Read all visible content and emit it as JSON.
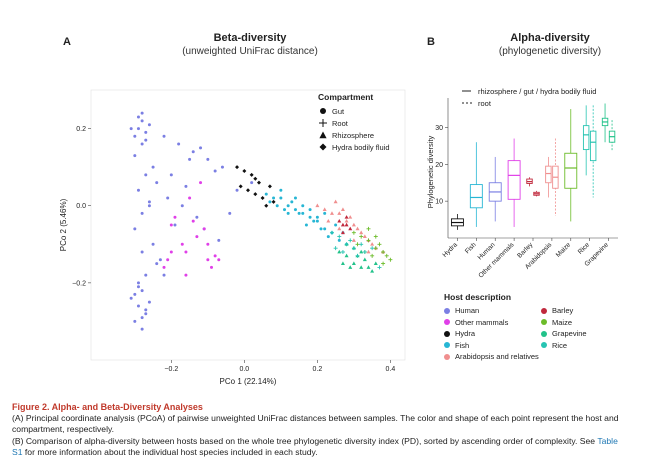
{
  "panel_a": {
    "letter": "A",
    "title": "Beta-diversity",
    "subtitle": "(unweighted UniFrac distance)",
    "legend_title": "Compartment",
    "legend_items": [
      "Gut",
      "Root",
      "Rhizosphere",
      "Hydra bodily fluid"
    ]
  },
  "panel_b": {
    "letter": "B",
    "title": "Alpha-diversity",
    "subtitle": "(phylogenetic diversity)",
    "line_legend": [
      "rhizosphere / gut / hydra bodily fluid",
      "root"
    ]
  },
  "host_legend": {
    "title": "Host description",
    "items": [
      {
        "label": "Human",
        "color": "#7b7fe3"
      },
      {
        "label": "Other mammals",
        "color": "#e040e8"
      },
      {
        "label": "Hydra",
        "color": "#111111"
      },
      {
        "label": "Fish",
        "color": "#27b6d4"
      },
      {
        "label": "Arabidopsis and relatives",
        "color": "#f08f8f"
      },
      {
        "label": "Barley",
        "color": "#c0283c"
      },
      {
        "label": "Maize",
        "color": "#6cbc2a"
      },
      {
        "label": "Grapevine",
        "color": "#22c28a"
      },
      {
        "label": "Rice",
        "color": "#27c4b2"
      }
    ]
  },
  "chart_data": [
    {
      "type": "scatter",
      "xlabel": "PCo 1 (22.14%)",
      "ylabel": "PCo 2 (5.46%)",
      "xlim": [
        -0.42,
        0.44
      ],
      "ylim": [
        -0.4,
        0.3
      ],
      "xticks": [
        -0.2,
        0.0,
        0.2,
        0.4
      ],
      "xtick_labels": [
        "−0.2",
        "0.0",
        "0.2",
        "0.4"
      ],
      "yticks": [
        -0.2,
        0.0,
        0.2
      ],
      "ytick_labels": [
        "−0.2",
        "0.0",
        "0.2"
      ],
      "series": [
        {
          "name": "Human",
          "shape": "Gut",
          "color": "#7b7fe3",
          "x": [
            -0.28,
            -0.29,
            -0.27,
            -0.3,
            -0.28,
            -0.26,
            -0.29,
            -0.31,
            -0.27,
            -0.28,
            -0.3,
            -0.27,
            -0.29,
            -0.28,
            -0.26,
            -0.3,
            -0.28,
            -0.27,
            -0.29,
            -0.28,
            -0.31,
            -0.29,
            -0.27,
            -0.28,
            -0.3,
            -0.26,
            -0.28,
            -0.29,
            -0.27,
            -0.3,
            -0.22,
            -0.18,
            -0.14,
            -0.1,
            -0.06,
            -0.2,
            -0.15,
            -0.12,
            -0.08,
            -0.24,
            -0.21,
            -0.17,
            -0.13,
            -0.11,
            -0.07,
            -0.04,
            -0.02,
            0.02,
            -0.25,
            -0.23,
            -0.19,
            -0.16,
            -0.25,
            -0.22,
            -0.26,
            -0.24
          ],
          "y": [
            0.22,
            0.2,
            0.19,
            0.18,
            0.16,
            0.21,
            0.23,
            0.2,
            0.17,
            0.24,
            0.13,
            0.08,
            0.04,
            -0.02,
            0.01,
            -0.06,
            -0.12,
            -0.18,
            -0.2,
            -0.22,
            -0.24,
            -0.26,
            -0.27,
            -0.29,
            -0.3,
            -0.25,
            -0.32,
            -0.21,
            -0.28,
            -0.23,
            0.18,
            0.16,
            0.14,
            0.12,
            0.1,
            0.08,
            0.12,
            0.15,
            0.09,
            0.06,
            0.02,
            0.0,
            -0.03,
            -0.06,
            -0.09,
            -0.02,
            0.04,
            0.06,
            -0.1,
            -0.14,
            -0.05,
            0.05,
            0.1,
            -0.18,
            0.0,
            -0.15
          ]
        },
        {
          "name": "Other mammals",
          "shape": "Gut",
          "color": "#e040e8",
          "x": [
            -0.21,
            -0.2,
            -0.16,
            -0.1,
            -0.08,
            -0.13,
            -0.19,
            -0.15,
            -0.12,
            -0.09,
            -0.22,
            -0.17,
            -0.11,
            -0.14,
            -0.2,
            -0.16,
            -0.07,
            -0.1
          ],
          "y": [
            -0.14,
            -0.12,
            -0.12,
            -0.14,
            -0.13,
            -0.08,
            -0.03,
            0.02,
            0.06,
            -0.16,
            -0.16,
            -0.1,
            -0.06,
            -0.04,
            -0.05,
            -0.18,
            -0.14,
            -0.1
          ]
        },
        {
          "name": "Hydra",
          "shape": "Hydra bodily fluid",
          "color": "#111111",
          "x": [
            -0.02,
            0.0,
            0.02,
            0.04,
            -0.01,
            0.01,
            0.03,
            0.05,
            0.06,
            0.08,
            0.03,
            0.07
          ],
          "y": [
            0.1,
            0.09,
            0.08,
            0.06,
            0.05,
            0.04,
            0.03,
            0.02,
            0.0,
            0.01,
            0.07,
            0.05
          ]
        },
        {
          "name": "Fish",
          "shape": "Gut",
          "color": "#27b6d4",
          "x": [
            0.06,
            0.08,
            0.1,
            0.12,
            0.14,
            0.16,
            0.18,
            0.2,
            0.22,
            0.24,
            0.26,
            0.28,
            0.09,
            0.11,
            0.13,
            0.15,
            0.17,
            0.19,
            0.21,
            0.23,
            0.25,
            0.27,
            0.07,
            0.1,
            0.12,
            0.14,
            0.16,
            0.18,
            0.2,
            0.22
          ],
          "y": [
            0.03,
            0.02,
            0.02,
            0.0,
            -0.01,
            -0.02,
            -0.03,
            -0.04,
            -0.06,
            -0.07,
            -0.09,
            -0.1,
            0.0,
            -0.01,
            0.01,
            -0.02,
            -0.05,
            -0.04,
            -0.06,
            -0.08,
            -0.05,
            -0.07,
            0.01,
            0.04,
            -0.02,
            0.02,
            0.0,
            -0.01,
            -0.03,
            -0.02
          ]
        },
        {
          "name": "Arabidopsis and relatives",
          "shape": "Rhizosphere",
          "color": "#f08f8f",
          "x": [
            0.2,
            0.22,
            0.24,
            0.26,
            0.28,
            0.3,
            0.32,
            0.34,
            0.36,
            0.38,
            0.25,
            0.27,
            0.29,
            0.31,
            0.33,
            0.35,
            0.23,
            0.26,
            0.3,
            0.34
          ],
          "y": [
            0.0,
            -0.01,
            -0.02,
            -0.02,
            -0.04,
            -0.05,
            -0.07,
            -0.09,
            -0.11,
            -0.12,
            0.01,
            -0.01,
            -0.03,
            -0.06,
            -0.08,
            -0.1,
            -0.04,
            -0.06,
            -0.09,
            -0.12
          ]
        },
        {
          "name": "Barley",
          "shape": "Rhizosphere",
          "color": "#c0283c",
          "x": [
            0.26,
            0.27,
            0.28,
            0.29,
            0.27,
            0.28
          ],
          "y": [
            -0.04,
            -0.05,
            -0.05,
            -0.06,
            -0.07,
            -0.03
          ]
        },
        {
          "name": "Maize",
          "shape": "Root",
          "color": "#6cbc2a",
          "x": [
            0.3,
            0.32,
            0.34,
            0.36,
            0.38,
            0.4,
            0.33,
            0.35,
            0.37,
            0.39,
            0.31,
            0.36,
            0.38,
            0.34
          ],
          "y": [
            -0.07,
            -0.08,
            -0.09,
            -0.11,
            -0.12,
            -0.14,
            -0.12,
            -0.13,
            -0.1,
            -0.13,
            -0.1,
            -0.08,
            -0.15,
            -0.06
          ]
        },
        {
          "name": "Grapevine",
          "shape": "Rhizosphere",
          "color": "#22c28a",
          "x": [
            0.26,
            0.28,
            0.3,
            0.32,
            0.34,
            0.36,
            0.27,
            0.29,
            0.31,
            0.33,
            0.35,
            0.3,
            0.32,
            0.28
          ],
          "y": [
            -0.12,
            -0.13,
            -0.15,
            -0.16,
            -0.16,
            -0.15,
            -0.15,
            -0.16,
            -0.13,
            -0.14,
            -0.17,
            -0.11,
            -0.12,
            -0.1
          ]
        },
        {
          "name": "Rice",
          "shape": "Root",
          "color": "#27c4b2",
          "x": [
            0.24,
            0.26,
            0.28,
            0.3,
            0.32,
            0.25,
            0.27,
            0.29,
            0.31,
            0.33,
            0.35,
            0.37
          ],
          "y": [
            -0.07,
            -0.08,
            -0.1,
            -0.11,
            -0.1,
            -0.11,
            -0.12,
            -0.09,
            -0.13,
            -0.12,
            -0.11,
            -0.16
          ]
        }
      ]
    },
    {
      "type": "box",
      "ylabel": "Phylogenetic diversity",
      "ylim": [
        0,
        38
      ],
      "yticks": [
        10,
        20,
        30
      ],
      "categories": [
        "Hydra",
        "Fish",
        "Human",
        "Other mammals",
        "Barley",
        "Arabidopsis",
        "Maize",
        "Rice",
        "Grapevine"
      ],
      "boxes": [
        {
          "host": "Hydra",
          "color": "#111111",
          "compartment": "rhizosphere / gut / hydra bodily fluid",
          "whisker_low": 2.2,
          "q1": 3.3,
          "median": 4.2,
          "q3": 5.2,
          "whisker_high": 6.5
        },
        {
          "host": "Fish",
          "color": "#27b6d4",
          "compartment": "rhizosphere / gut / hydra bodily fluid",
          "whisker_low": 3.0,
          "q1": 8.2,
          "median": 11.0,
          "q3": 14.5,
          "whisker_high": 26.0
        },
        {
          "host": "Human",
          "color": "#7b7fe3",
          "compartment": "rhizosphere / gut / hydra bodily fluid",
          "whisker_low": 4.5,
          "q1": 10.0,
          "median": 12.5,
          "q3": 15.0,
          "whisker_high": 22.0
        },
        {
          "host": "Other mammals",
          "color": "#e040e8",
          "compartment": "rhizosphere / gut / hydra bodily fluid",
          "whisker_low": 3.0,
          "q1": 10.5,
          "median": 17.0,
          "q3": 21.0,
          "whisker_high": 27.0
        },
        {
          "host": "Barley",
          "color": "#c0283c",
          "compartment": "rhizosphere / gut / hydra bodily fluid",
          "whisker_low": 14.0,
          "q1": 14.8,
          "median": 15.3,
          "q3": 16.0,
          "whisker_high": 16.5
        },
        {
          "host": "Barley",
          "color": "#c0283c",
          "compartment": "root",
          "whisker_low": 11.0,
          "q1": 11.6,
          "median": 12.0,
          "q3": 12.4,
          "whisker_high": 12.8
        },
        {
          "host": "Arabidopsis",
          "color": "#f08f8f",
          "compartment": "rhizosphere / gut / hydra bodily fluid",
          "whisker_low": 11.0,
          "q1": 15.0,
          "median": 17.5,
          "q3": 19.5,
          "whisker_high": 22.0
        },
        {
          "host": "Arabidopsis",
          "color": "#f08f8f",
          "compartment": "root",
          "whisker_low": 6.0,
          "q1": 13.5,
          "median": 16.5,
          "q3": 19.5,
          "whisker_high": 27.0
        },
        {
          "host": "Maize",
          "color": "#6cbc2a",
          "compartment": "rhizosphere / gut / hydra bodily fluid",
          "whisker_low": 4.5,
          "q1": 13.5,
          "median": 19.0,
          "q3": 23.0,
          "whisker_high": 35.0
        },
        {
          "host": "Rice",
          "color": "#27c4b2",
          "compartment": "rhizosphere / gut / hydra bodily fluid",
          "whisker_low": 17.0,
          "q1": 24.0,
          "median": 28.0,
          "q3": 30.5,
          "whisker_high": 36.0
        },
        {
          "host": "Rice",
          "color": "#27c4b2",
          "compartment": "root",
          "whisker_low": 11.0,
          "q1": 21.0,
          "median": 26.0,
          "q3": 29.0,
          "whisker_high": 36.0
        },
        {
          "host": "Grapevine",
          "color": "#22c28a",
          "compartment": "rhizosphere / gut / hydra bodily fluid",
          "whisker_low": 26.0,
          "q1": 30.5,
          "median": 31.5,
          "q3": 32.5,
          "whisker_high": 36.5
        },
        {
          "host": "Grapevine",
          "color": "#22c28a",
          "compartment": "root",
          "whisker_low": 23.5,
          "q1": 26.0,
          "median": 27.5,
          "q3": 29.0,
          "whisker_high": 32.0
        }
      ]
    }
  ],
  "caption": {
    "title": "Figure 2. Alpha- and Beta-Diversity Analyses",
    "a_line_1": "(A) Principal coordinate analysis (PCoA) of pairwise unweighted UniFrac distances between samples. The color and shape of each point represent the host and",
    "a_line_2": "compartment, respectively.",
    "b_line_1_pre": "(B) Comparison of alpha-diversity between hosts based on the whole tree phylogenetic diversity index (PD), sorted by ascending order of complexity. See ",
    "b_link_1": "Table",
    "b_link_2": "S1",
    "b_line_2_post": " for more information about the individual host species included in each study."
  }
}
